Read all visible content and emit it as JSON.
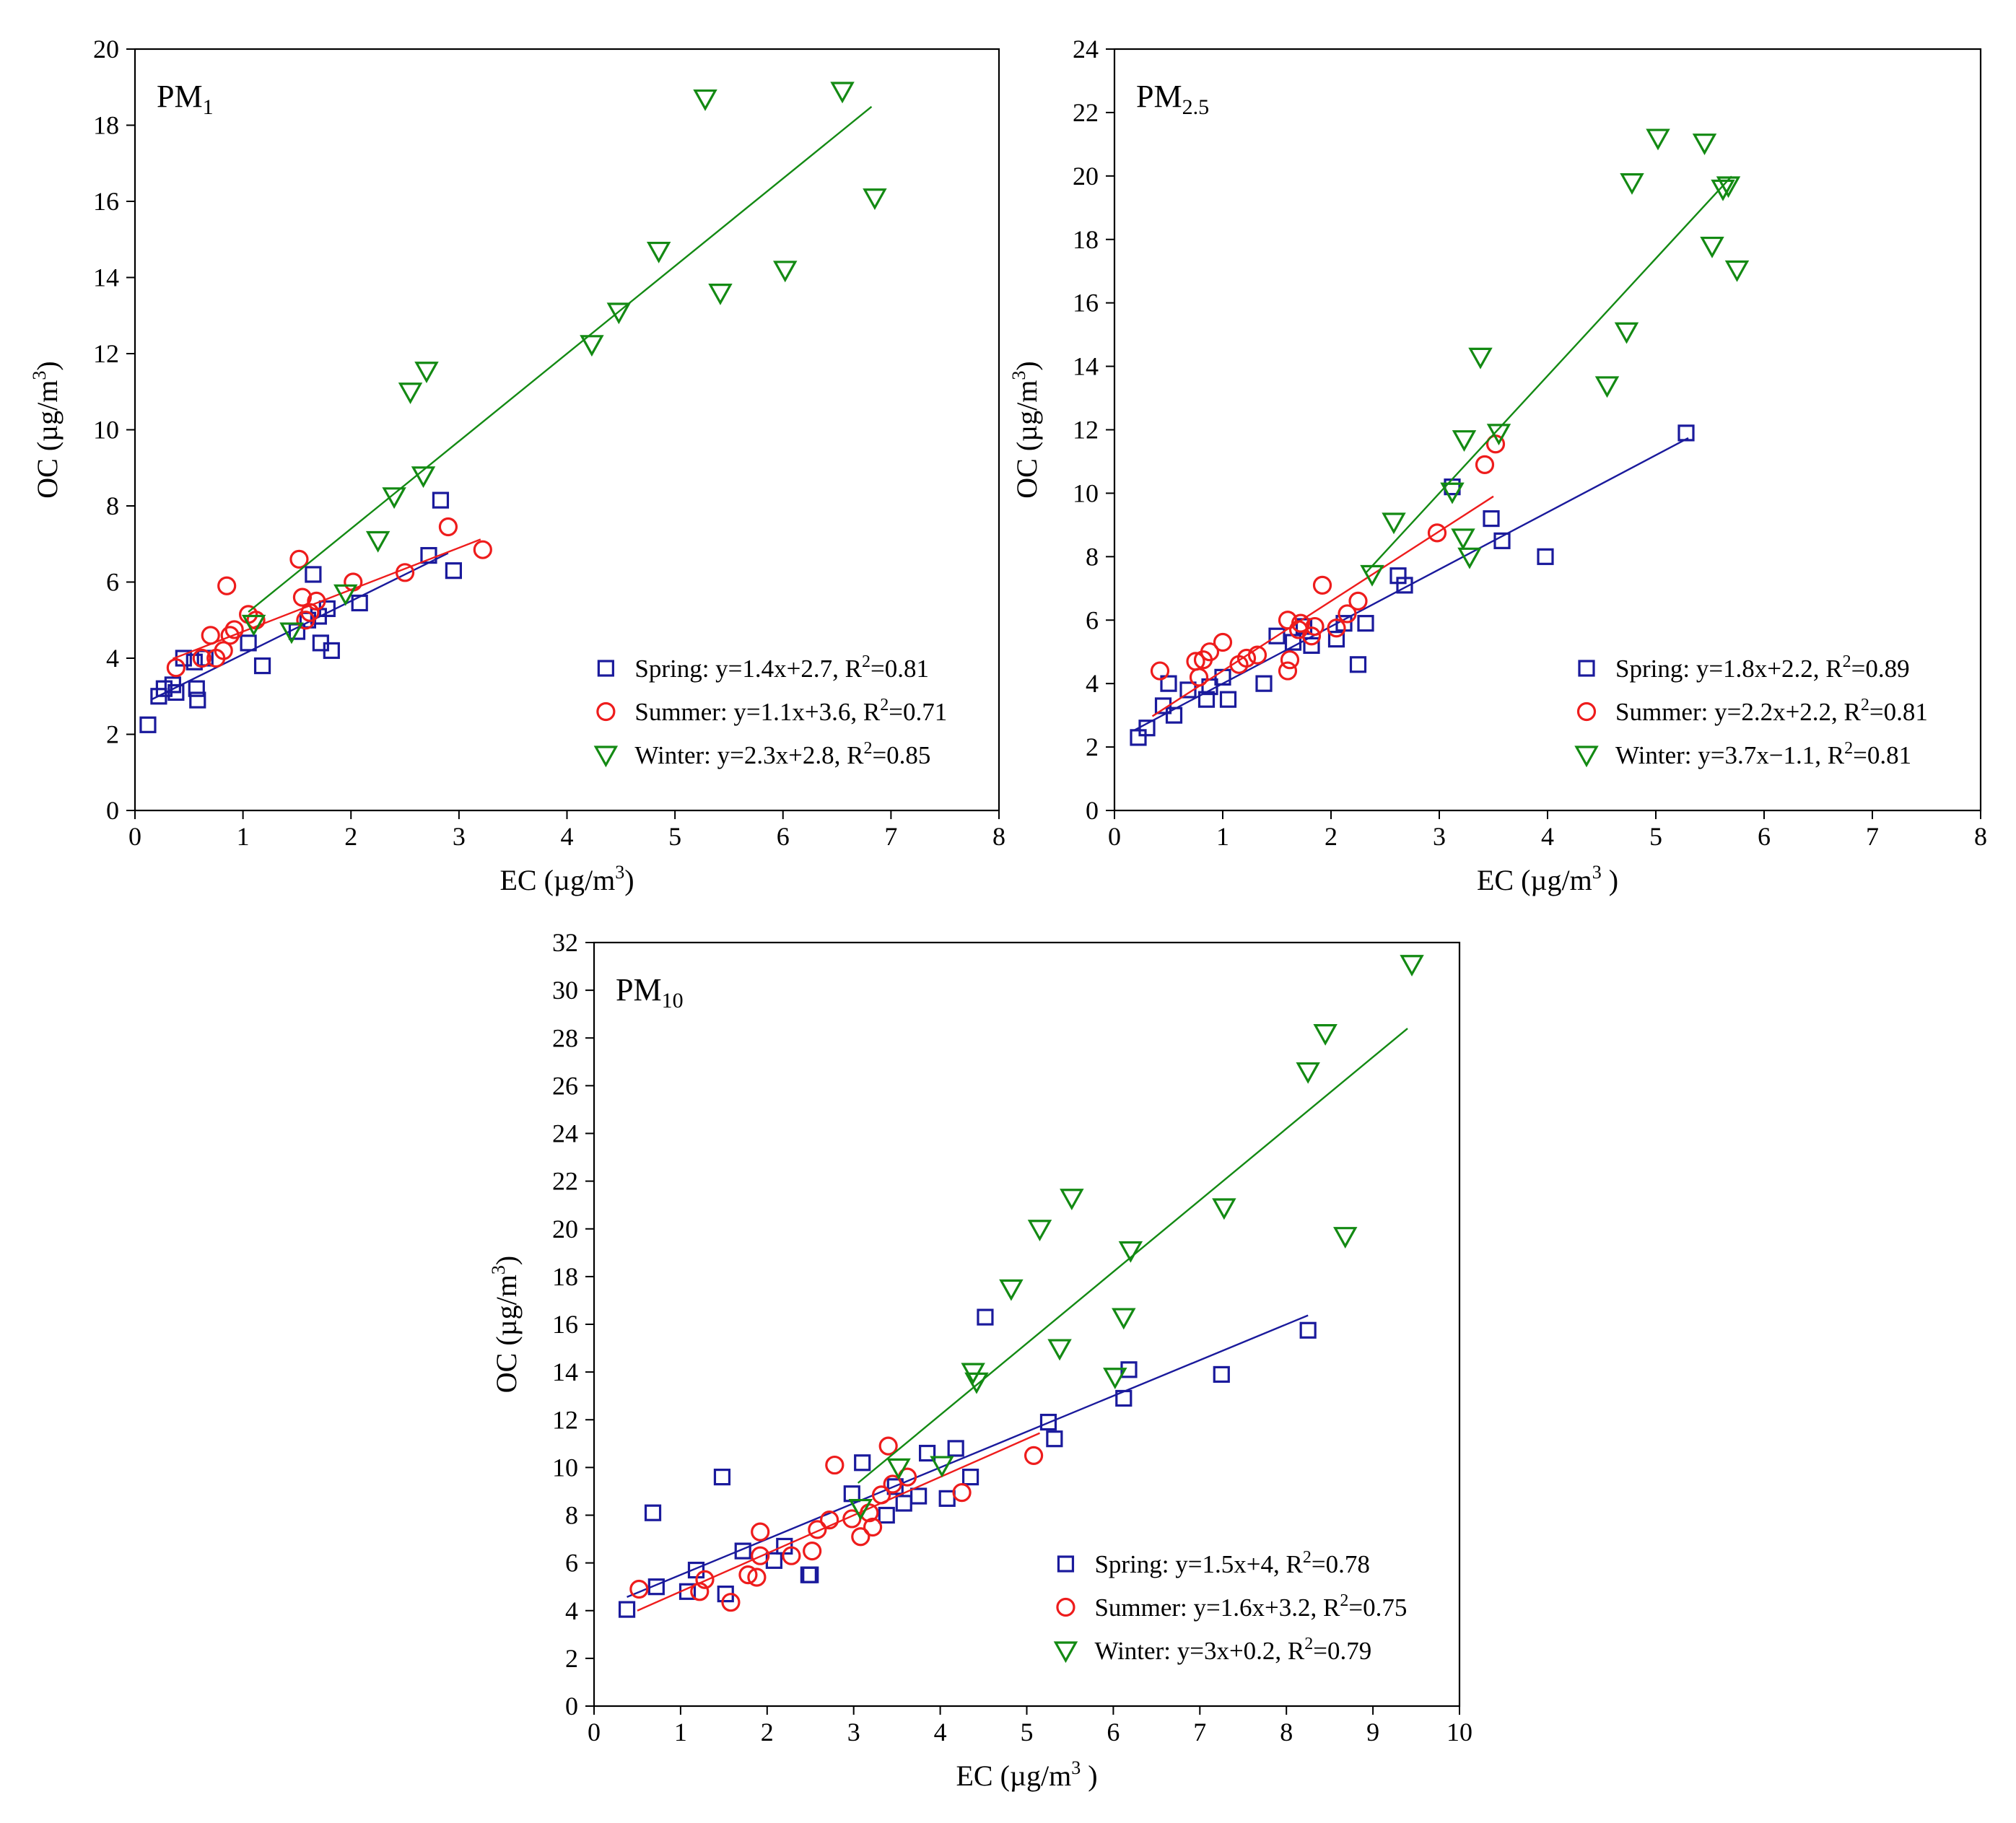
{
  "figure": {
    "colors": {
      "spring": "#1a1a9c",
      "summer": "#ee1c1c",
      "winter": "#138a13"
    }
  },
  "chart_data": [
    {
      "type": "scatter",
      "panel_label": "PM",
      "panel_label_sub": "1",
      "xlabel": "EC (µg/m",
      "xlabel_sup": "3",
      "xlabel_end": ")",
      "ylabel": "OC (µg/m",
      "ylabel_sup": "3",
      "ylabel_end": ")",
      "xlim": [
        0,
        8
      ],
      "ylim": [
        0,
        20
      ],
      "x_ticks": [
        0,
        1,
        2,
        3,
        4,
        5,
        6,
        7,
        8
      ],
      "y_ticks": [
        0,
        2,
        4,
        6,
        8,
        10,
        12,
        14,
        16,
        18,
        20
      ],
      "x_tick_labels": [
        "0",
        "1",
        "2",
        "3",
        "4",
        "5",
        "6",
        "7",
        "8"
      ],
      "y_tick_labels": [
        "0",
        "2",
        "4",
        "6",
        "8",
        "10",
        "12",
        "14",
        "16",
        "18",
        "20"
      ],
      "legend_position": "bottom-right",
      "series": [
        {
          "key": "spring",
          "marker": "square",
          "legend": "Spring:  y=1.4x+2.7, R",
          "legend_sup": "2",
          "legend_end": "=0.81",
          "fit": {
            "slope": 1.4,
            "intercept": 2.7,
            "x_range": [
              0.15,
              2.9
            ]
          },
          "points": [
            [
              0.12,
              2.25
            ],
            [
              0.22,
              3.0
            ],
            [
              0.27,
              3.2
            ],
            [
              0.35,
              3.3
            ],
            [
              0.38,
              3.1
            ],
            [
              0.45,
              4.0
            ],
            [
              0.55,
              3.9
            ],
            [
              0.57,
              3.2
            ],
            [
              0.58,
              2.9
            ],
            [
              0.65,
              4.0
            ],
            [
              1.05,
              4.4
            ],
            [
              1.18,
              3.8
            ],
            [
              1.5,
              4.7
            ],
            [
              1.6,
              5.0
            ],
            [
              1.65,
              6.2
            ],
            [
              1.7,
              5.1
            ],
            [
              1.72,
              4.4
            ],
            [
              1.78,
              5.3
            ],
            [
              1.82,
              4.2
            ],
            [
              2.08,
              5.45
            ],
            [
              2.72,
              6.7
            ],
            [
              2.83,
              8.15
            ],
            [
              2.95,
              6.3
            ]
          ]
        },
        {
          "key": "summer",
          "marker": "circle",
          "legend": "Summer:  y=1.1x+3.6, R",
          "legend_sup": "2",
          "legend_end": "=0.71",
          "fit": {
            "slope": 1.1,
            "intercept": 3.6,
            "x_range": [
              0.35,
              3.2
            ]
          },
          "points": [
            [
              0.38,
              3.75
            ],
            [
              0.62,
              4.0
            ],
            [
              0.7,
              4.6
            ],
            [
              0.75,
              4.0
            ],
            [
              0.82,
              4.2
            ],
            [
              0.85,
              5.9
            ],
            [
              0.88,
              4.6
            ],
            [
              0.92,
              4.75
            ],
            [
              1.05,
              5.15
            ],
            [
              1.12,
              5.0
            ],
            [
              1.52,
              6.6
            ],
            [
              1.55,
              5.6
            ],
            [
              1.58,
              5.0
            ],
            [
              1.62,
              5.2
            ],
            [
              1.68,
              5.5
            ],
            [
              2.02,
              6.0
            ],
            [
              2.5,
              6.25
            ],
            [
              2.9,
              7.45
            ],
            [
              3.22,
              6.85
            ]
          ]
        },
        {
          "key": "winter",
          "marker": "triangle-down",
          "legend": "Winter:  y=2.3x+2.8, R",
          "legend_sup": "2",
          "legend_end": "=0.85",
          "fit": {
            "slope": 2.3,
            "intercept": 2.8,
            "x_range": [
              1.05,
              6.82
            ]
          },
          "points": [
            [
              1.1,
              4.9
            ],
            [
              1.45,
              4.7
            ],
            [
              1.95,
              5.7
            ],
            [
              2.25,
              7.1
            ],
            [
              2.4,
              8.25
            ],
            [
              2.55,
              11.0
            ],
            [
              2.67,
              8.8
            ],
            [
              2.7,
              11.55
            ],
            [
              4.23,
              12.25
            ],
            [
              4.48,
              13.1
            ],
            [
              4.85,
              14.7
            ],
            [
              5.28,
              18.7
            ],
            [
              5.42,
              13.6
            ],
            [
              6.02,
              14.2
            ],
            [
              6.55,
              18.9
            ],
            [
              6.85,
              16.1
            ]
          ]
        }
      ]
    },
    {
      "type": "scatter",
      "panel_label": "PM",
      "panel_label_sub": "2.5",
      "xlabel": "EC (µg/m",
      "xlabel_sup": "3",
      "xlabel_end": " )",
      "ylabel": "OC (µg/m",
      "ylabel_sup": "3",
      "ylabel_end": ")",
      "xlim": [
        0,
        8
      ],
      "ylim": [
        0,
        24
      ],
      "x_ticks": [
        0,
        1,
        2,
        3,
        4,
        5,
        6,
        7,
        8
      ],
      "y_ticks": [
        0,
        2,
        4,
        6,
        8,
        10,
        12,
        14,
        16,
        18,
        20,
        22,
        24
      ],
      "x_tick_labels": [
        "0",
        "1",
        "2",
        "3",
        "4",
        "5",
        "6",
        "7",
        "8"
      ],
      "y_tick_labels": [
        "0",
        "2",
        "4",
        "6",
        "8",
        "10",
        "12",
        "14",
        "16",
        "18",
        "20",
        "22",
        "24"
      ],
      "legend_position": "bottom-right",
      "series": [
        {
          "key": "spring",
          "marker": "square",
          "legend": "Spring:  y=1.8x+2.2, R",
          "legend_sup": "2",
          "legend_end": "=0.89",
          "fit": {
            "slope": 1.8,
            "intercept": 2.2,
            "x_range": [
              0.18,
              5.3
            ]
          },
          "points": [
            [
              0.22,
              2.3
            ],
            [
              0.3,
              2.6
            ],
            [
              0.45,
              3.3
            ],
            [
              0.5,
              4.0
            ],
            [
              0.55,
              3.0
            ],
            [
              0.68,
              3.8
            ],
            [
              0.85,
              3.5
            ],
            [
              0.88,
              3.9
            ],
            [
              1.0,
              4.2
            ],
            [
              1.05,
              3.5
            ],
            [
              1.38,
              4.0
            ],
            [
              1.5,
              5.5
            ],
            [
              1.65,
              5.3
            ],
            [
              1.75,
              5.8
            ],
            [
              1.82,
              5.2
            ],
            [
              2.05,
              5.4
            ],
            [
              2.12,
              5.9
            ],
            [
              2.25,
              4.6
            ],
            [
              2.32,
              5.9
            ],
            [
              2.62,
              7.4
            ],
            [
              2.68,
              7.1
            ],
            [
              3.12,
              10.2
            ],
            [
              3.48,
              9.2
            ],
            [
              3.58,
              8.5
            ],
            [
              3.98,
              8.0
            ],
            [
              5.28,
              11.9
            ]
          ]
        },
        {
          "key": "summer",
          "marker": "circle",
          "legend": "Summer:  y=2.2x+2.2, R",
          "legend_sup": "2",
          "legend_end": "=0.81",
          "fit": {
            "slope": 2.2,
            "intercept": 2.2,
            "x_range": [
              0.35,
              3.5
            ]
          },
          "points": [
            [
              0.42,
              4.4
            ],
            [
              0.75,
              4.7
            ],
            [
              0.78,
              4.2
            ],
            [
              0.82,
              4.75
            ],
            [
              0.88,
              5.0
            ],
            [
              1.0,
              5.3
            ],
            [
              1.15,
              4.6
            ],
            [
              1.22,
              4.8
            ],
            [
              1.32,
              4.9
            ],
            [
              1.6,
              6.0
            ],
            [
              1.6,
              4.4
            ],
            [
              1.62,
              4.75
            ],
            [
              1.7,
              5.7
            ],
            [
              1.72,
              5.9
            ],
            [
              1.82,
              5.5
            ],
            [
              1.85,
              5.8
            ],
            [
              1.92,
              7.1
            ],
            [
              2.05,
              5.75
            ],
            [
              2.15,
              6.2
            ],
            [
              2.25,
              6.6
            ],
            [
              2.98,
              8.75
            ],
            [
              3.42,
              10.9
            ],
            [
              3.52,
              11.55
            ]
          ]
        },
        {
          "key": "winter",
          "marker": "triangle-down",
          "legend": "Winter:  y=3.7x−1.1, R",
          "legend_sup": "2",
          "legend_end": "=0.81",
          "fit": {
            "slope": 3.7,
            "intercept": -1.1,
            "x_range": [
              2.32,
              5.7
            ]
          },
          "points": [
            [
              2.38,
              7.45
            ],
            [
              2.58,
              9.1
            ],
            [
              3.12,
              10.05
            ],
            [
              3.22,
              8.6
            ],
            [
              3.23,
              11.7
            ],
            [
              3.28,
              8.0
            ],
            [
              3.38,
              14.3
            ],
            [
              3.55,
              11.9
            ],
            [
              4.55,
              13.4
            ],
            [
              4.73,
              15.1
            ],
            [
              4.78,
              19.8
            ],
            [
              5.02,
              21.2
            ],
            [
              5.45,
              21.05
            ],
            [
              5.52,
              17.8
            ],
            [
              5.62,
              19.6
            ],
            [
              5.67,
              19.7
            ],
            [
              5.75,
              17.05
            ]
          ]
        }
      ]
    },
    {
      "type": "scatter",
      "panel_label": "PM",
      "panel_label_sub": "10",
      "xlabel": "EC (µg/m",
      "xlabel_sup": "3",
      "xlabel_end": " )",
      "ylabel": "OC (µg/m",
      "ylabel_sup": "3",
      "ylabel_end": ")",
      "xlim": [
        0,
        10
      ],
      "ylim": [
        0,
        32
      ],
      "x_ticks": [
        0,
        1,
        2,
        3,
        4,
        5,
        6,
        7,
        8,
        9,
        10
      ],
      "y_ticks": [
        0,
        2,
        4,
        6,
        8,
        10,
        12,
        14,
        16,
        18,
        20,
        22,
        24,
        26,
        28,
        30,
        32
      ],
      "x_tick_labels": [
        "0",
        "1",
        "2",
        "3",
        "4",
        "5",
        "6",
        "7",
        "8",
        "9",
        "10"
      ],
      "y_tick_labels": [
        "0",
        "2",
        "4",
        "6",
        "8",
        "10",
        "12",
        "14",
        "16",
        "18",
        "20",
        "22",
        "24",
        "26",
        "28",
        "30",
        "32"
      ],
      "legend_position": "bottom-right",
      "series": [
        {
          "key": "spring",
          "marker": "square",
          "legend": "Spring:  y=1.5x+4, R",
          "legend_sup": "2",
          "legend_end": "=0.78",
          "fit": {
            "slope": 1.5,
            "intercept": 4.0,
            "x_range": [
              0.38,
              8.25
            ]
          },
          "points": [
            [
              0.38,
              4.05
            ],
            [
              0.68,
              8.1
            ],
            [
              0.72,
              5.0
            ],
            [
              1.08,
              4.8
            ],
            [
              1.18,
              5.7
            ],
            [
              1.48,
              9.6
            ],
            [
              1.52,
              4.7
            ],
            [
              1.72,
              6.5
            ],
            [
              2.08,
              6.1
            ],
            [
              2.2,
              6.7
            ],
            [
              2.48,
              5.5
            ],
            [
              2.5,
              5.5
            ],
            [
              2.98,
              8.9
            ],
            [
              3.1,
              10.2
            ],
            [
              3.38,
              8.0
            ],
            [
              3.48,
              9.2
            ],
            [
              3.58,
              8.5
            ],
            [
              3.75,
              8.8
            ],
            [
              3.85,
              10.6
            ],
            [
              4.08,
              8.7
            ],
            [
              4.18,
              10.8
            ],
            [
              4.35,
              9.6
            ],
            [
              4.52,
              16.3
            ],
            [
              5.25,
              11.9
            ],
            [
              5.32,
              11.2
            ],
            [
              6.12,
              12.9
            ],
            [
              6.18,
              14.1
            ],
            [
              7.25,
              13.9
            ],
            [
              8.25,
              15.75
            ]
          ]
        },
        {
          "key": "summer",
          "marker": "circle",
          "legend": "Summer:  y=1.6x+3.2, R",
          "legend_sup": "2",
          "legend_end": "=0.75",
          "fit": {
            "slope": 1.6,
            "intercept": 3.2,
            "x_range": [
              0.5,
              5.15
            ]
          },
          "points": [
            [
              0.52,
              4.9
            ],
            [
              1.22,
              4.8
            ],
            [
              1.28,
              5.3
            ],
            [
              1.58,
              4.35
            ],
            [
              1.78,
              5.5
            ],
            [
              1.88,
              5.4
            ],
            [
              1.92,
              6.3
            ],
            [
              1.92,
              7.3
            ],
            [
              2.28,
              6.3
            ],
            [
              2.52,
              6.5
            ],
            [
              2.58,
              7.4
            ],
            [
              2.72,
              7.8
            ],
            [
              2.78,
              10.1
            ],
            [
              2.98,
              7.85
            ],
            [
              3.08,
              7.1
            ],
            [
              3.18,
              8.1
            ],
            [
              3.22,
              7.5
            ],
            [
              3.32,
              8.85
            ],
            [
              3.4,
              10.9
            ],
            [
              3.45,
              9.3
            ],
            [
              3.62,
              9.6
            ],
            [
              4.25,
              8.95
            ],
            [
              5.08,
              10.5
            ]
          ]
        },
        {
          "key": "winter",
          "marker": "triangle-down",
          "legend": "Winter:  y=3x+0.2, R",
          "legend_sup": "2",
          "legend_end": "=0.79",
          "fit": {
            "slope": 3.0,
            "intercept": 0.2,
            "x_range": [
              3.05,
              9.4
            ]
          },
          "points": [
            [
              3.08,
              8.3
            ],
            [
              3.52,
              10.0
            ],
            [
              4.02,
              10.1
            ],
            [
              4.38,
              14.0
            ],
            [
              4.42,
              13.6
            ],
            [
              4.82,
              17.5
            ],
            [
              5.15,
              20.0
            ],
            [
              5.38,
              15.0
            ],
            [
              5.52,
              21.3
            ],
            [
              6.02,
              13.8
            ],
            [
              6.12,
              16.3
            ],
            [
              6.2,
              19.1
            ],
            [
              7.28,
              20.9
            ],
            [
              8.25,
              26.6
            ],
            [
              8.45,
              28.2
            ],
            [
              8.68,
              19.7
            ],
            [
              9.45,
              31.1
            ]
          ]
        }
      ]
    }
  ]
}
